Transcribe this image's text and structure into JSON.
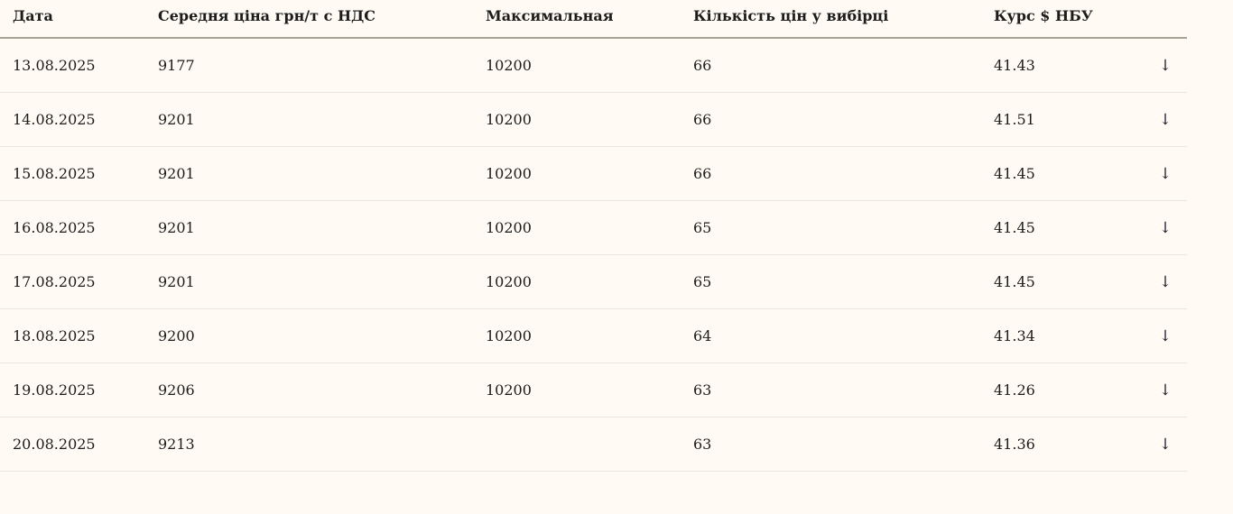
{
  "table": {
    "columns": {
      "date": {
        "label": "Дата"
      },
      "avg": {
        "label": "Середня ціна грн/т с НДС"
      },
      "max": {
        "label": "Максимальная"
      },
      "count": {
        "label": "Кількість цін у вибірці"
      },
      "rate": {
        "label": "Курс $ НБУ"
      }
    },
    "row_action_icon": "↓",
    "rows": [
      {
        "date": "13.08.2025",
        "avg": "9177",
        "max": "10200",
        "count": "66",
        "rate": "41.43"
      },
      {
        "date": "14.08.2025",
        "avg": "9201",
        "max": "10200",
        "count": "66",
        "rate": "41.51"
      },
      {
        "date": "15.08.2025",
        "avg": "9201",
        "max": "10200",
        "count": "66",
        "rate": "41.45"
      },
      {
        "date": "16.08.2025",
        "avg": "9201",
        "max": "10200",
        "count": "65",
        "rate": "41.45"
      },
      {
        "date": "17.08.2025",
        "avg": "9201",
        "max": "10200",
        "count": "65",
        "rate": "41.45"
      },
      {
        "date": "18.08.2025",
        "avg": "9200",
        "max": "10200",
        "count": "64",
        "rate": "41.34"
      },
      {
        "date": "19.08.2025",
        "avg": "9206",
        "max": "10200",
        "count": "63",
        "rate": "41.26"
      },
      {
        "date": "20.08.2025",
        "avg": "9213",
        "max": "",
        "count": "63",
        "rate": "41.36"
      }
    ]
  },
  "colors": {
    "background": "#fffbf4",
    "text": "#1c1c1c",
    "header_border": "#a6a595",
    "row_border": "#eae7e0"
  }
}
